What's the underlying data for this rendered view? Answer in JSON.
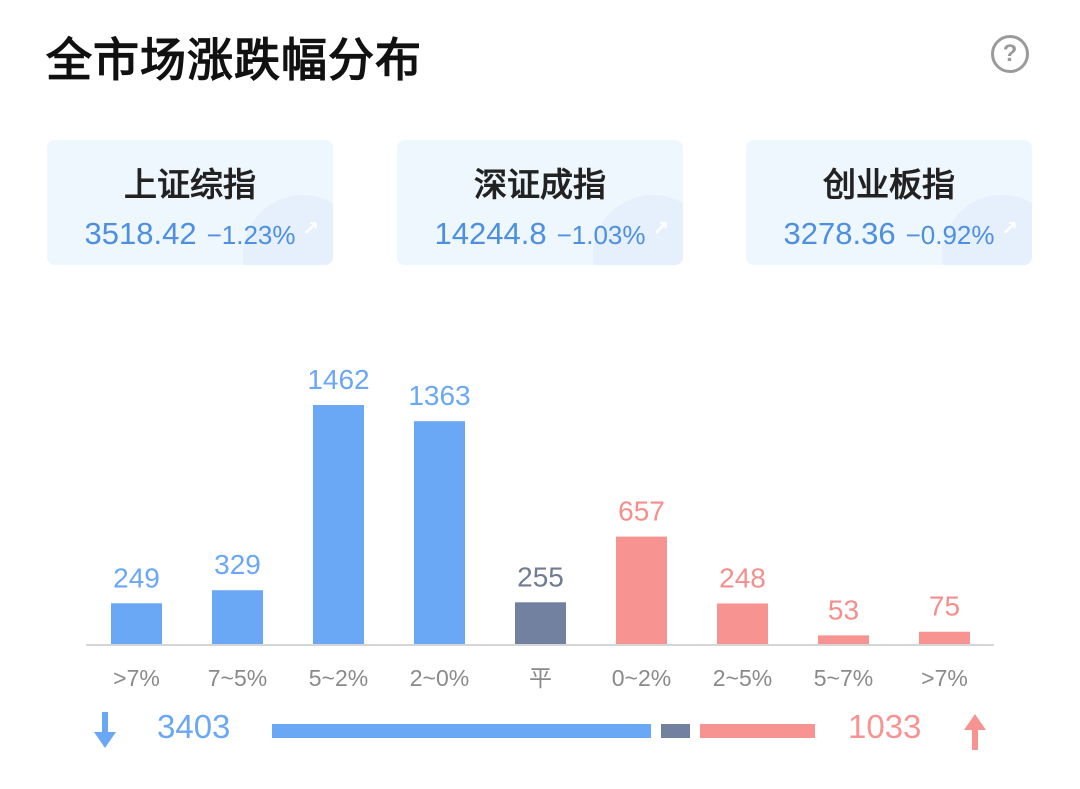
{
  "header": {
    "title": "全市场涨跌幅分布",
    "help_icon": "?"
  },
  "indices": [
    {
      "name": "上证综指",
      "value": "3518.42",
      "change": "−1.23%"
    },
    {
      "name": "深证成指",
      "value": "14244.8",
      "change": "−1.03%"
    },
    {
      "name": "创业板指",
      "value": "3278.36",
      "change": "−0.92%"
    }
  ],
  "colors": {
    "down": "#6aa7f4",
    "flat": "#71819f",
    "up": "#f79491",
    "down_text": "#6aa7f4",
    "flat_text": "#6f7c92",
    "up_text": "#f48f8c",
    "axis": "#d6d6d6",
    "tick_text": "#8a8a8a"
  },
  "chart_data": {
    "type": "bar",
    "categories": [
      ">7%",
      "7~5%",
      "5~2%",
      "2~0%",
      "平",
      "0~2%",
      "2~5%",
      "5~7%",
      ">7%"
    ],
    "values": [
      249,
      329,
      1462,
      1363,
      255,
      657,
      248,
      53,
      75
    ],
    "groups": [
      "down",
      "down",
      "down",
      "down",
      "flat",
      "up",
      "up",
      "up",
      "up"
    ],
    "ylim": [
      0,
      1462
    ]
  },
  "summary": {
    "down_total": "3403",
    "up_total": "1033",
    "down_count": 3403,
    "flat_count": 255,
    "up_count": 1033
  }
}
